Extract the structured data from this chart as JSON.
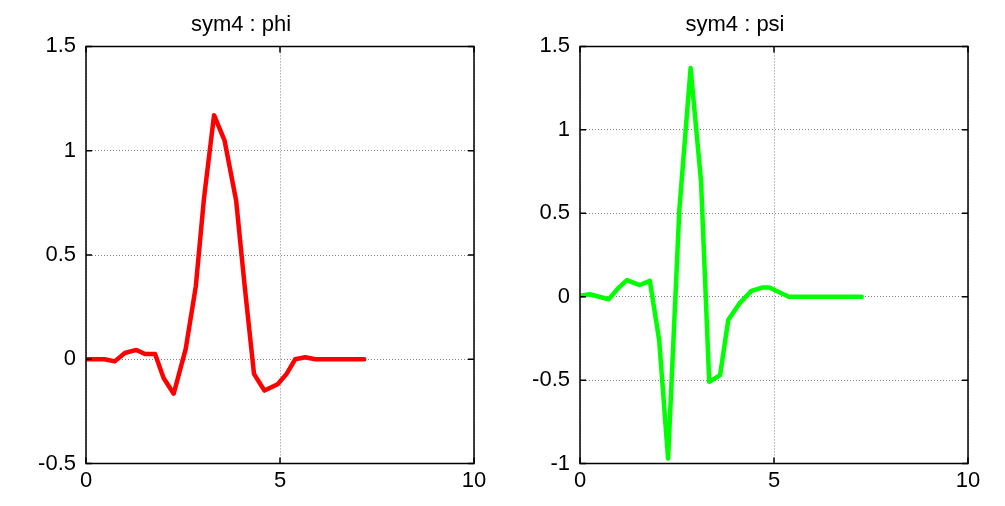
{
  "chart_data": [
    {
      "type": "line",
      "title": "sym4 : phi",
      "xlim": [
        0,
        10
      ],
      "ylim": [
        -0.5,
        1.5
      ],
      "xticks": [
        0,
        5,
        10
      ],
      "yticks": [
        -0.5,
        0,
        0.5,
        1,
        1.5
      ],
      "grid": true,
      "legend": false,
      "marker": "none",
      "line_style": "solid",
      "x": [
        0,
        0.48,
        0.74,
        1.0,
        1.3,
        1.52,
        1.78,
        2.0,
        2.26,
        2.57,
        2.83,
        3.04,
        3.3,
        3.57,
        3.87,
        4.09,
        4.33,
        4.6,
        4.94,
        5.17,
        5.39,
        5.65,
        5.91,
        7.17
      ],
      "series": [
        {
          "color": "#ff0000",
          "values": [
            0,
            0,
            -0.01,
            0.03,
            0.045,
            0.025,
            0.025,
            -0.09,
            -0.165,
            0.05,
            0.35,
            0.77,
            1.17,
            1.05,
            0.76,
            0.35,
            -0.07,
            -0.15,
            -0.12,
            -0.07,
            0,
            0.01,
            0,
            0
          ]
        }
      ]
    },
    {
      "type": "line",
      "title": "sym4 : psi",
      "xlim": [
        0,
        10
      ],
      "ylim": [
        -1,
        1.5
      ],
      "xticks": [
        0,
        5,
        10
      ],
      "yticks": [
        -1,
        -0.5,
        0,
        0.5,
        1,
        1.5
      ],
      "grid": true,
      "legend": false,
      "marker": "none",
      "line_style": "solid",
      "x": [
        0,
        0.25,
        0.74,
        1.0,
        1.21,
        1.54,
        1.8,
        2.04,
        2.27,
        2.56,
        2.85,
        3.12,
        3.33,
        3.61,
        3.82,
        4.11,
        4.42,
        4.69,
        4.88,
        5.38,
        7.26
      ],
      "series": [
        {
          "color": "#00ff00",
          "values": [
            0.005,
            0.015,
            -0.015,
            0.055,
            0.1,
            0.07,
            0.095,
            -0.26,
            -0.97,
            0.52,
            1.37,
            0.69,
            -0.51,
            -0.47,
            -0.14,
            -0.04,
            0.035,
            0.055,
            0.055,
            0,
            0
          ]
        }
      ]
    }
  ]
}
